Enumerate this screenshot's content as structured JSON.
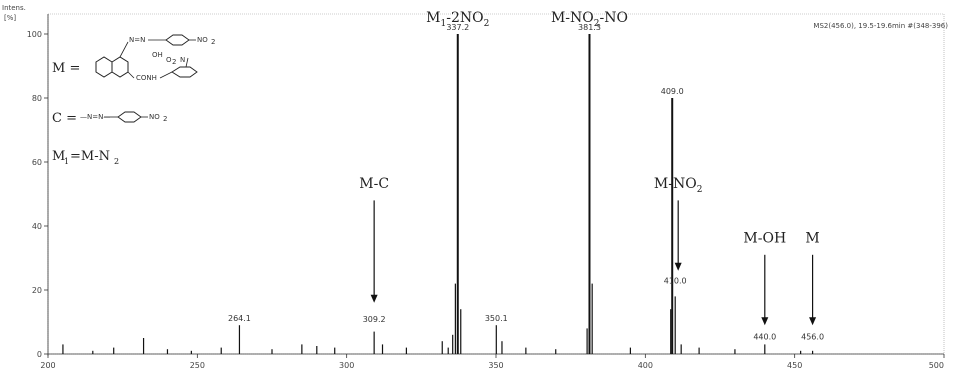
{
  "chart_data": {
    "type": "bar",
    "ylabel": "Intens. [%]",
    "header": "MS2(456.0), 19.5-19.6min #(348-396)",
    "xlim": [
      200,
      500
    ],
    "ylim": [
      0,
      105
    ],
    "x_ticks": [
      200,
      250,
      300,
      350,
      400,
      450,
      500
    ],
    "x_tick_labels": [
      "200",
      "250",
      "300",
      "350",
      "400",
      "450",
      "500"
    ],
    "y_ticks": [
      0,
      20,
      40,
      60,
      80,
      100
    ],
    "peaks": [
      {
        "mz": 205.0,
        "intensity": 3
      },
      {
        "mz": 215.0,
        "intensity": 1
      },
      {
        "mz": 222.0,
        "intensity": 2
      },
      {
        "mz": 232.0,
        "intensity": 5
      },
      {
        "mz": 240.0,
        "intensity": 1.5
      },
      {
        "mz": 248.0,
        "intensity": 1
      },
      {
        "mz": 258.0,
        "intensity": 2
      },
      {
        "mz": 264.1,
        "intensity": 9
      },
      {
        "mz": 275.0,
        "intensity": 1.5
      },
      {
        "mz": 285.0,
        "intensity": 3
      },
      {
        "mz": 290.0,
        "intensity": 2.5
      },
      {
        "mz": 296.0,
        "intensity": 2
      },
      {
        "mz": 309.2,
        "intensity": 7
      },
      {
        "mz": 312.0,
        "intensity": 3
      },
      {
        "mz": 320.0,
        "intensity": 2
      },
      {
        "mz": 332.0,
        "intensity": 4
      },
      {
        "mz": 334.0,
        "intensity": 2
      },
      {
        "mz": 335.5,
        "intensity": 6
      },
      {
        "mz": 336.4,
        "intensity": 22
      },
      {
        "mz": 337.2,
        "intensity": 100
      },
      {
        "mz": 338.2,
        "intensity": 14
      },
      {
        "mz": 350.1,
        "intensity": 9
      },
      {
        "mz": 352.0,
        "intensity": 4
      },
      {
        "mz": 360.0,
        "intensity": 2
      },
      {
        "mz": 370.0,
        "intensity": 1.5
      },
      {
        "mz": 380.5,
        "intensity": 8
      },
      {
        "mz": 381.3,
        "intensity": 100
      },
      {
        "mz": 382.2,
        "intensity": 22
      },
      {
        "mz": 395.0,
        "intensity": 2
      },
      {
        "mz": 408.5,
        "intensity": 14
      },
      {
        "mz": 409.0,
        "intensity": 80
      },
      {
        "mz": 410.0,
        "intensity": 18
      },
      {
        "mz": 412.0,
        "intensity": 3
      },
      {
        "mz": 418.0,
        "intensity": 2
      },
      {
        "mz": 430.0,
        "intensity": 1.5
      },
      {
        "mz": 440.0,
        "intensity": 3
      },
      {
        "mz": 452.0,
        "intensity": 1
      },
      {
        "mz": 456.0,
        "intensity": 1
      }
    ],
    "peak_labels": [
      {
        "mz": 264.1,
        "label": "264.1"
      },
      {
        "mz": 309.2,
        "label": "309.2"
      },
      {
        "mz": 337.2,
        "label": "337.2"
      },
      {
        "mz": 350.1,
        "label": "350.1"
      },
      {
        "mz": 381.3,
        "label": "381.3"
      },
      {
        "mz": 409.0,
        "label": "409.0"
      },
      {
        "mz": 410.0,
        "label": "410.0"
      },
      {
        "mz": 440.0,
        "label": "440.0"
      },
      {
        "mz": 456.0,
        "label": "456.0"
      }
    ],
    "annotations": [
      {
        "id": "m-c",
        "text": "M-C",
        "sub": "",
        "mz": 309.2,
        "arrow_from": 50,
        "arrow_to": 16
      },
      {
        "id": "m1-2no2",
        "text": "M",
        "sub": "1",
        "tail": "-2NO",
        "tail_sub": "2",
        "mz": 337.2,
        "arrow_from": null,
        "arrow_to": null
      },
      {
        "id": "m-no2-no",
        "text": "M-NO",
        "sub": "2",
        "tail": "-NO",
        "mz": 381.3,
        "arrow_from": null,
        "arrow_to": null
      },
      {
        "id": "m-no2",
        "text": "M-NO",
        "sub": "2",
        "mz": 411.0,
        "arrow_from": 50,
        "arrow_to": 26
      },
      {
        "id": "m-oh",
        "text": "M-OH",
        "sub": "",
        "mz": 440.0,
        "arrow_from": 33,
        "arrow_to": 9
      },
      {
        "id": "m",
        "text": "M",
        "sub": "",
        "mz": 456.0,
        "arrow_from": 33,
        "arrow_to": 9
      }
    ],
    "legend": {
      "m_label": "M =",
      "c_label": "C =",
      "c_chain": "—N=N—",
      "c_group": "NO",
      "c_group_sub": "2",
      "m_fragments": [
        "N=N",
        "NO",
        "2",
        "OH",
        "O",
        "2",
        "N",
        "CONH"
      ],
      "m1_text": "M",
      "m1_sub": "1",
      "m1_rest": "=M-N",
      "m1_rest_sub": "2"
    }
  }
}
